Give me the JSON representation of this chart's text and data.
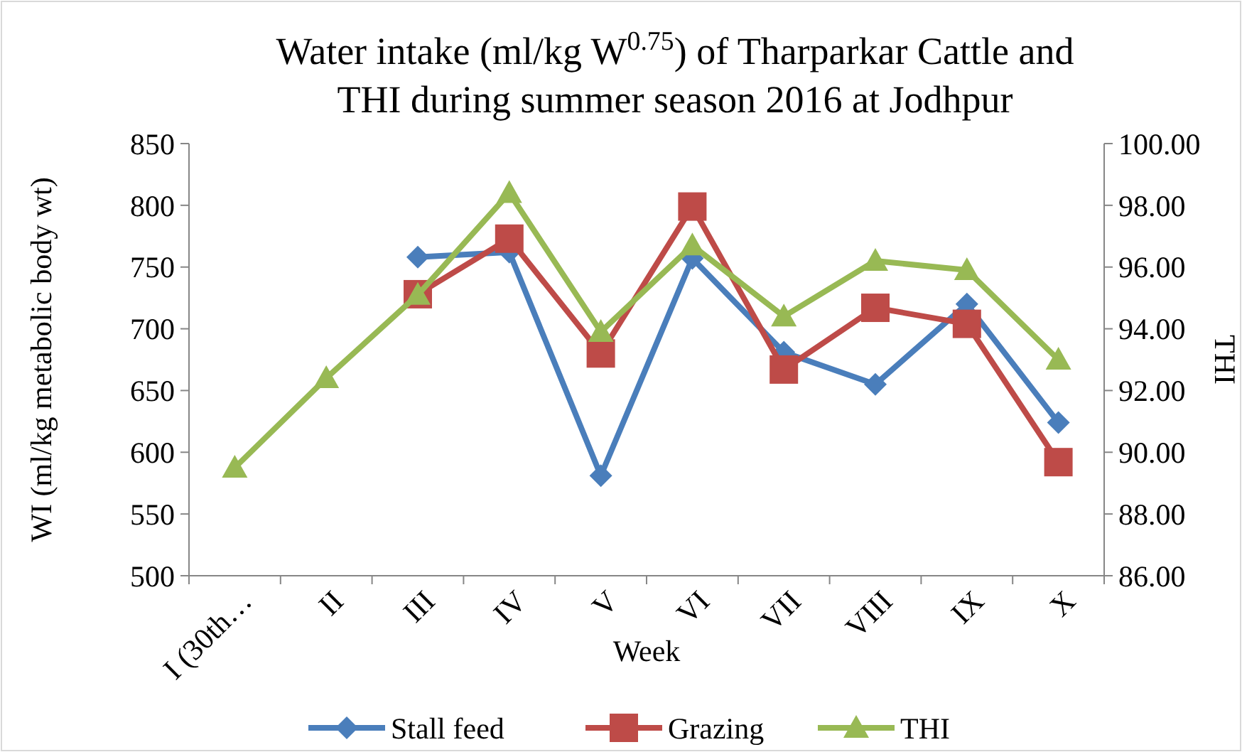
{
  "chart_data": {
    "type": "line",
    "title": "Water intake (ml/kg W$^{0.75}$) of Tharparkar Cattle and THI during summer season 2016 at Jodhpur",
    "xlabel": "Week",
    "ylabel": "WI (ml/kg metabolic body wt)",
    "y2label": "THI",
    "categories": [
      "I (30th…",
      "II",
      "III",
      "IV",
      "V",
      "VI",
      "VII",
      "VIII",
      "IX",
      "X"
    ],
    "series": [
      {
        "name": "Stall feed",
        "color": "#4a7ebb",
        "marker": "diamond",
        "values": [
          null,
          null,
          758,
          762,
          581,
          757,
          681,
          655,
          720,
          624
        ]
      },
      {
        "name": "Grazing",
        "color": "#be4b48",
        "marker": "square",
        "values": [
          null,
          null,
          728,
          773,
          680,
          799,
          667,
          717,
          704,
          592
        ]
      },
      {
        "name": "THI",
        "color": "#98b954",
        "marker": "triangle",
        "axis": "y2",
        "values": [
          89.5,
          92.4,
          95.1,
          98.4,
          93.9,
          96.7,
          94.4,
          96.2,
          95.9,
          93.0
        ]
      }
    ],
    "ylim": [
      500,
      850
    ],
    "yticks": [
      500,
      550,
      600,
      650,
      700,
      750,
      800,
      850
    ],
    "y2lim": [
      86,
      100
    ],
    "y2ticks": [
      {
        "value": 86,
        "label": "86.00"
      },
      {
        "value": 88,
        "label": "88.00"
      },
      {
        "value": 90,
        "label": "90.00"
      },
      {
        "value": 92,
        "label": "92.00"
      },
      {
        "value": 94,
        "label": "94.00"
      },
      {
        "value": 96,
        "label": "96.00"
      },
      {
        "value": 98,
        "label": "98.00"
      },
      {
        "value": 100,
        "label": "100.00"
      }
    ],
    "legend": "bottom"
  }
}
